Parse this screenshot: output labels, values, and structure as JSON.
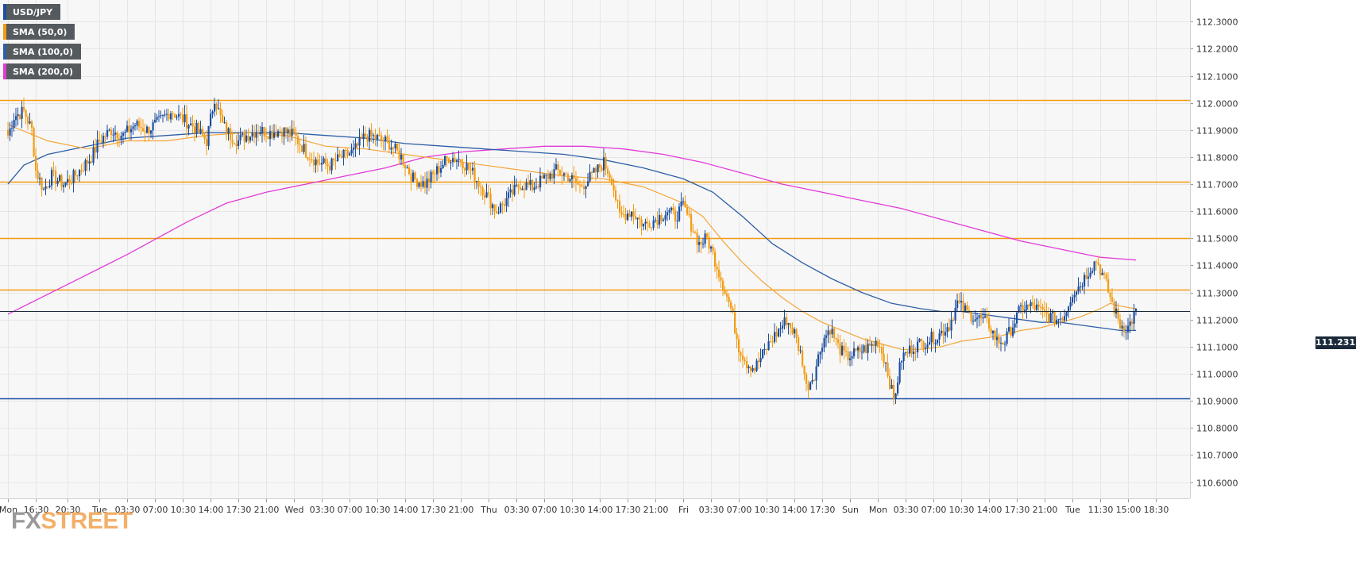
{
  "legend": [
    {
      "label": "USD/JPY",
      "color": "#1c4ea1"
    },
    {
      "label": "SMA (50,0)",
      "color": "#f39c12"
    },
    {
      "label": "SMA (100,0)",
      "color": "#2d5fa6"
    },
    {
      "label": "SMA (200,0)",
      "color": "#e23ad8"
    }
  ],
  "logo": {
    "part1": "FX",
    "part2": "STREET"
  },
  "last_price": "111.2315",
  "colors": {
    "up": "#1c4ea1",
    "down": "#f39c12",
    "level_orange": "#f39c12",
    "level_blue": "#1c4ea1",
    "sma50": "#f5a63a",
    "sma100": "#2d5fa6",
    "sma200": "#e23ad8",
    "grid": "#e6e6e6",
    "plot_bg": "#f7f7f7"
  },
  "chart_data": {
    "type": "candlestick",
    "title": "USD/JPY",
    "ylim": [
      110.54,
      112.38
    ],
    "y_ticks": [
      "110.6000",
      "110.7000",
      "110.8000",
      "110.9000",
      "111.0000",
      "111.1000",
      "111.2000",
      "111.3000",
      "111.4000",
      "111.5000",
      "111.6000",
      "111.7000",
      "111.8000",
      "111.9000",
      "112.0000",
      "112.1000",
      "112.2000",
      "112.3000"
    ],
    "x_ticks": [
      {
        "label": "Mon",
        "i": 0
      },
      {
        "label": "16:30",
        "i": 14
      },
      {
        "label": "20:30",
        "i": 30
      },
      {
        "label": "Tue",
        "i": 46
      },
      {
        "label": "03:30",
        "i": 60
      },
      {
        "label": "07:00",
        "i": 74
      },
      {
        "label": "10:30",
        "i": 88
      },
      {
        "label": "14:00",
        "i": 102
      },
      {
        "label": "17:30",
        "i": 116
      },
      {
        "label": "21:00",
        "i": 130
      },
      {
        "label": "Wed",
        "i": 144
      },
      {
        "label": "03:30",
        "i": 158
      },
      {
        "label": "07:00",
        "i": 172
      },
      {
        "label": "10:30",
        "i": 186
      },
      {
        "label": "14:00",
        "i": 200
      },
      {
        "label": "17:30",
        "i": 214
      },
      {
        "label": "21:00",
        "i": 228
      },
      {
        "label": "Thu",
        "i": 242
      },
      {
        "label": "03:30",
        "i": 256
      },
      {
        "label": "07:00",
        "i": 270
      },
      {
        "label": "10:30",
        "i": 284
      },
      {
        "label": "14:00",
        "i": 298
      },
      {
        "label": "17:30",
        "i": 312
      },
      {
        "label": "21:00",
        "i": 326
      },
      {
        "label": "Fri",
        "i": 340
      },
      {
        "label": "03:30",
        "i": 354
      },
      {
        "label": "07:00",
        "i": 368
      },
      {
        "label": "10:30",
        "i": 382
      },
      {
        "label": "14:00",
        "i": 396
      },
      {
        "label": "17:30",
        "i": 410
      },
      {
        "label": "Sun",
        "i": 424
      },
      {
        "label": "Mon",
        "i": 438
      },
      {
        "label": "03:30",
        "i": 452
      },
      {
        "label": "07:00",
        "i": 466
      },
      {
        "label": "10:30",
        "i": 480
      },
      {
        "label": "14:00",
        "i": 494
      },
      {
        "label": "17:30",
        "i": 508
      },
      {
        "label": "21:00",
        "i": 522
      },
      {
        "label": "Tue",
        "i": 536
      },
      {
        "label": "11:30",
        "i": 550
      },
      {
        "label": "15:00",
        "i": 564
      },
      {
        "label": "18:30",
        "i": 578
      }
    ],
    "horizontal_levels": [
      {
        "value": 112.01,
        "color": "orange"
      },
      {
        "value": 111.71,
        "color": "orange"
      },
      {
        "value": 111.5,
        "color": "orange"
      },
      {
        "value": 111.31,
        "color": "orange"
      },
      {
        "value": 110.91,
        "color": "blue"
      }
    ],
    "last_price_value": 111.2315,
    "candle_anchors": [
      [
        0,
        111.88
      ],
      [
        3,
        111.95
      ],
      [
        8,
        111.97
      ],
      [
        12,
        111.9
      ],
      [
        14,
        111.75
      ],
      [
        18,
        111.68
      ],
      [
        22,
        111.73
      ],
      [
        28,
        111.7
      ],
      [
        32,
        111.72
      ],
      [
        36,
        111.75
      ],
      [
        42,
        111.8
      ],
      [
        46,
        111.86
      ],
      [
        52,
        111.9
      ],
      [
        58,
        111.88
      ],
      [
        64,
        111.92
      ],
      [
        70,
        111.9
      ],
      [
        76,
        111.93
      ],
      [
        82,
        111.97
      ],
      [
        88,
        111.94
      ],
      [
        94,
        111.91
      ],
      [
        100,
        111.86
      ],
      [
        104,
        112.02
      ],
      [
        108,
        111.92
      ],
      [
        112,
        111.88
      ],
      [
        116,
        111.86
      ],
      [
        120,
        111.88
      ],
      [
        126,
        111.9
      ],
      [
        132,
        111.89
      ],
      [
        138,
        111.9
      ],
      [
        144,
        111.88
      ],
      [
        150,
        111.82
      ],
      [
        156,
        111.78
      ],
      [
        162,
        111.77
      ],
      [
        168,
        111.8
      ],
      [
        174,
        111.82
      ],
      [
        180,
        111.88
      ],
      [
        186,
        111.87
      ],
      [
        192,
        111.85
      ],
      [
        198,
        111.8
      ],
      [
        204,
        111.72
      ],
      [
        210,
        111.7
      ],
      [
        216,
        111.75
      ],
      [
        222,
        111.8
      ],
      [
        228,
        111.79
      ],
      [
        234,
        111.74
      ],
      [
        240,
        111.67
      ],
      [
        246,
        111.6
      ],
      [
        252,
        111.65
      ],
      [
        258,
        111.7
      ],
      [
        264,
        111.69
      ],
      [
        270,
        111.72
      ],
      [
        276,
        111.75
      ],
      [
        282,
        111.73
      ],
      [
        288,
        111.69
      ],
      [
        294,
        111.73
      ],
      [
        300,
        111.78
      ],
      [
        304,
        111.72
      ],
      [
        308,
        111.58
      ],
      [
        314,
        111.6
      ],
      [
        320,
        111.55
      ],
      [
        326,
        111.57
      ],
      [
        332,
        111.6
      ],
      [
        336,
        111.58
      ],
      [
        340,
        111.62
      ],
      [
        344,
        111.55
      ],
      [
        348,
        111.48
      ],
      [
        352,
        111.5
      ],
      [
        356,
        111.42
      ],
      [
        360,
        111.33
      ],
      [
        364,
        111.24
      ],
      [
        368,
        111.1
      ],
      [
        372,
        111.04
      ],
      [
        376,
        111.02
      ],
      [
        380,
        111.07
      ],
      [
        384,
        111.12
      ],
      [
        388,
        111.16
      ],
      [
        392,
        111.2
      ],
      [
        396,
        111.15
      ],
      [
        400,
        111.05
      ],
      [
        402,
        110.95
      ],
      [
        406,
        111.0
      ],
      [
        410,
        111.12
      ],
      [
        414,
        111.17
      ],
      [
        418,
        111.1
      ],
      [
        422,
        111.06
      ],
      [
        428,
        111.08
      ],
      [
        434,
        111.1
      ],
      [
        438,
        111.12
      ],
      [
        442,
        111.04
      ],
      [
        446,
        110.9
      ],
      [
        450,
        111.06
      ],
      [
        456,
        111.1
      ],
      [
        462,
        111.12
      ],
      [
        468,
        111.14
      ],
      [
        474,
        111.18
      ],
      [
        478,
        111.26
      ],
      [
        484,
        111.22
      ],
      [
        490,
        111.2
      ],
      [
        494,
        111.18
      ],
      [
        498,
        111.12
      ],
      [
        502,
        111.12
      ],
      [
        506,
        111.18
      ],
      [
        510,
        111.24
      ],
      [
        516,
        111.25
      ],
      [
        522,
        111.22
      ],
      [
        528,
        111.2
      ],
      [
        532,
        111.22
      ],
      [
        536,
        111.3
      ],
      [
        540,
        111.33
      ],
      [
        544,
        111.38
      ],
      [
        548,
        111.42
      ],
      [
        552,
        111.35
      ],
      [
        556,
        111.26
      ],
      [
        560,
        111.18
      ],
      [
        564,
        111.17
      ],
      [
        568,
        111.23
      ]
    ],
    "sma50": [
      [
        0,
        111.92
      ],
      [
        20,
        111.86
      ],
      [
        40,
        111.83
      ],
      [
        60,
        111.86
      ],
      [
        80,
        111.86
      ],
      [
        100,
        111.88
      ],
      [
        120,
        111.89
      ],
      [
        140,
        111.88
      ],
      [
        160,
        111.84
      ],
      [
        180,
        111.83
      ],
      [
        200,
        111.81
      ],
      [
        220,
        111.79
      ],
      [
        240,
        111.77
      ],
      [
        260,
        111.75
      ],
      [
        280,
        111.73
      ],
      [
        300,
        111.72
      ],
      [
        320,
        111.69
      ],
      [
        340,
        111.63
      ],
      [
        350,
        111.58
      ],
      [
        360,
        111.49
      ],
      [
        370,
        111.41
      ],
      [
        380,
        111.34
      ],
      [
        390,
        111.28
      ],
      [
        400,
        111.23
      ],
      [
        410,
        111.19
      ],
      [
        420,
        111.16
      ],
      [
        430,
        111.13
      ],
      [
        440,
        111.11
      ],
      [
        450,
        111.09
      ],
      [
        460,
        111.09
      ],
      [
        470,
        111.1
      ],
      [
        480,
        111.12
      ],
      [
        490,
        111.13
      ],
      [
        500,
        111.14
      ],
      [
        510,
        111.16
      ],
      [
        520,
        111.17
      ],
      [
        530,
        111.19
      ],
      [
        540,
        111.21
      ],
      [
        550,
        111.24
      ],
      [
        555,
        111.26
      ],
      [
        560,
        111.25
      ],
      [
        568,
        111.24
      ]
    ],
    "sma100": [
      [
        0,
        111.7
      ],
      [
        8,
        111.77
      ],
      [
        20,
        111.81
      ],
      [
        40,
        111.84
      ],
      [
        60,
        111.87
      ],
      [
        80,
        111.88
      ],
      [
        100,
        111.89
      ],
      [
        120,
        111.89
      ],
      [
        140,
        111.89
      ],
      [
        160,
        111.88
      ],
      [
        180,
        111.87
      ],
      [
        200,
        111.85
      ],
      [
        220,
        111.84
      ],
      [
        240,
        111.83
      ],
      [
        260,
        111.82
      ],
      [
        280,
        111.81
      ],
      [
        300,
        111.79
      ],
      [
        320,
        111.76
      ],
      [
        340,
        111.72
      ],
      [
        355,
        111.67
      ],
      [
        370,
        111.58
      ],
      [
        385,
        111.48
      ],
      [
        400,
        111.41
      ],
      [
        415,
        111.35
      ],
      [
        430,
        111.3
      ],
      [
        445,
        111.26
      ],
      [
        460,
        111.24
      ],
      [
        470,
        111.23
      ],
      [
        480,
        111.23
      ],
      [
        490,
        111.22
      ],
      [
        500,
        111.21
      ],
      [
        510,
        111.2
      ],
      [
        520,
        111.19
      ],
      [
        530,
        111.19
      ],
      [
        540,
        111.18
      ],
      [
        550,
        111.17
      ],
      [
        560,
        111.16
      ],
      [
        568,
        111.16
      ]
    ],
    "sma200": [
      [
        0,
        111.22
      ],
      [
        30,
        111.33
      ],
      [
        60,
        111.44
      ],
      [
        90,
        111.56
      ],
      [
        110,
        111.63
      ],
      [
        130,
        111.67
      ],
      [
        150,
        111.7
      ],
      [
        170,
        111.73
      ],
      [
        190,
        111.76
      ],
      [
        210,
        111.8
      ],
      [
        230,
        111.82
      ],
      [
        250,
        111.83
      ],
      [
        270,
        111.84
      ],
      [
        290,
        111.84
      ],
      [
        310,
        111.83
      ],
      [
        330,
        111.81
      ],
      [
        350,
        111.78
      ],
      [
        370,
        111.74
      ],
      [
        390,
        111.7
      ],
      [
        410,
        111.67
      ],
      [
        430,
        111.64
      ],
      [
        450,
        111.61
      ],
      [
        470,
        111.57
      ],
      [
        490,
        111.53
      ],
      [
        510,
        111.49
      ],
      [
        530,
        111.46
      ],
      [
        550,
        111.43
      ],
      [
        568,
        111.42
      ]
    ],
    "grid": true
  }
}
